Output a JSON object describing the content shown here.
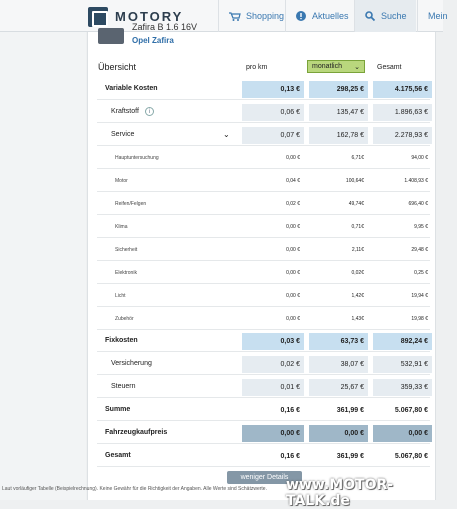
{
  "nav": {
    "brand": "MOTORY",
    "links": [
      "Shopping",
      "Aktuelles",
      "Suche",
      "Mein"
    ]
  },
  "car": {
    "title": "Zafira B 1.6 16V",
    "model": "Opel Zafira"
  },
  "table": {
    "heading": "Übersicht",
    "col_prokm": "pro km",
    "period_select": "monatlich",
    "col_total": "Gesamt",
    "rows": [
      {
        "label": "Variable Kosten",
        "km": "0,13 €",
        "month": "298,25 €",
        "total": "4.175,56 €"
      },
      {
        "label": "Kraftstoff",
        "km": "0,06 €",
        "month": "135,47 €",
        "total": "1.896,63 €"
      },
      {
        "label": "Service",
        "km": "0,07 €",
        "month": "162,78 €",
        "total": "2.278,93 €"
      },
      {
        "label": "Hauptuntersuchung",
        "km": "0,00 €",
        "month": "6,71€",
        "total": "94,00 €"
      },
      {
        "label": "Motor",
        "km": "0,04 €",
        "month": "100,64€",
        "total": "1.408,93 €"
      },
      {
        "label": "Reifen/Felgen",
        "km": "0,02 €",
        "month": "49,74€",
        "total": "696,40 €"
      },
      {
        "label": "Klima",
        "km": "0,00 €",
        "month": "0,71€",
        "total": "9,95 €"
      },
      {
        "label": "Sicherheit",
        "km": "0,00 €",
        "month": "2,11€",
        "total": "29,48 €"
      },
      {
        "label": "Elektronik",
        "km": "0,00 €",
        "month": "0,02€",
        "total": "0,25 €"
      },
      {
        "label": "Licht",
        "km": "0,00 €",
        "month": "1,42€",
        "total": "19,94 €"
      },
      {
        "label": "Zubehör",
        "km": "0,00 €",
        "month": "1,43€",
        "total": "19,98 €"
      },
      {
        "label": "Fixkosten",
        "km": "0,03 €",
        "month": "63,73 €",
        "total": "892,24 €"
      },
      {
        "label": "Versicherung",
        "km": "0,02 €",
        "month": "38,07 €",
        "total": "532,91 €"
      },
      {
        "label": "Steuern",
        "km": "0,01 €",
        "month": "25,67 €",
        "total": "359,33 €"
      },
      {
        "label": "Summe",
        "km": "0,16 €",
        "month": "361,99 €",
        "total": "5.067,80 €"
      },
      {
        "label": "Fahrzeugkaufpreis",
        "km": "0,00 €",
        "month": "0,00 €",
        "total": "0,00 €"
      },
      {
        "label": "Gesamt",
        "km": "0,16 €",
        "month": "361,99 €",
        "total": "5.067,80 €"
      }
    ],
    "details_button": "weniger Details"
  },
  "footer": "Laut vorläufiger Tabelle (Beispielrechnung). Keine Gewähr für die Richtigkeit der Angaben. Alle Werte sind Schätzwerte.",
  "watermark": "www.MOTOR-TALK.de",
  "colors": {
    "accent": "#2f6ea8",
    "select_green": "#b9d77d",
    "highlight_blue": "#c7dff0",
    "dark_blue": "#9fb7c8"
  }
}
